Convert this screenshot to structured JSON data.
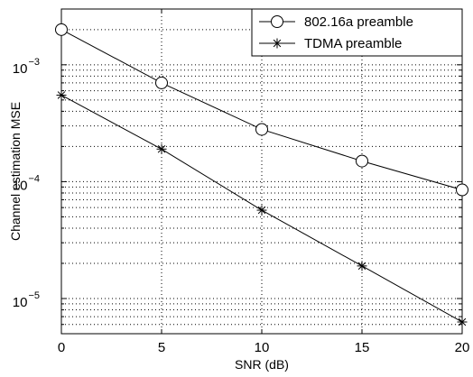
{
  "chart_data": {
    "type": "line",
    "title": "",
    "xlabel": "SNR (dB)",
    "ylabel": "Channel estimation MSE",
    "x": [
      0,
      5,
      10,
      15,
      20
    ],
    "xticks": [
      "0",
      "5",
      "10",
      "15",
      "20"
    ],
    "xlim": [
      0,
      20
    ],
    "yscale": "log",
    "ylim": [
      5e-06,
      0.003
    ],
    "yticks": [
      {
        "base": "10",
        "exp": "−3"
      },
      {
        "base": "10",
        "exp": "−4"
      },
      {
        "base": "10",
        "exp": "−5"
      }
    ],
    "grid": true,
    "legend_position": "top-right",
    "series": [
      {
        "name": "802.16a preamble",
        "marker": "circle",
        "color": "#000000",
        "values": [
          0.002,
          0.0007,
          0.00028,
          0.00015,
          8.5e-05
        ]
      },
      {
        "name": "TDMA preamble",
        "marker": "star",
        "color": "#000000",
        "values": [
          0.00055,
          0.00019,
          5.7e-05,
          1.9e-05,
          6.3e-06
        ]
      }
    ]
  }
}
